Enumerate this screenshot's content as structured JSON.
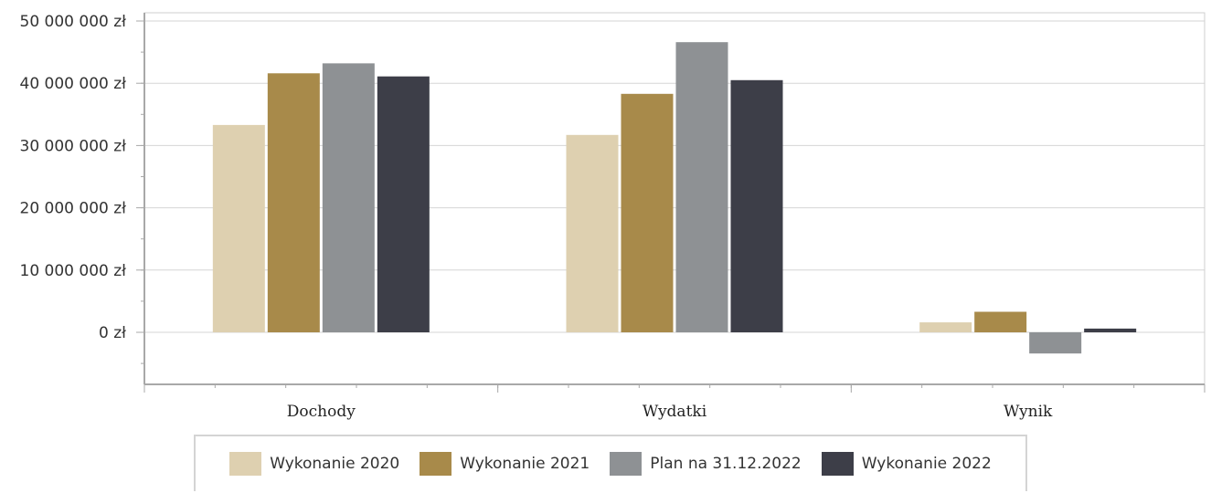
{
  "chart_data": {
    "type": "bar",
    "title": "",
    "xlabel": "",
    "ylabel": "",
    "categories": [
      "Dochody",
      "Wydatki",
      "Wynik"
    ],
    "series": [
      {
        "name": "Wykonanie 2020",
        "color": "#ded0b0",
        "values": [
          33300000,
          31700000,
          1600000
        ]
      },
      {
        "name": "Wykonanie 2021",
        "color": "#a88a4a",
        "values": [
          41600000,
          38300000,
          3300000
        ]
      },
      {
        "name": "Plan na 31.12.2022",
        "color": "#8e9194",
        "values": [
          43200000,
          46600000,
          -3400000
        ]
      },
      {
        "name": "Wykonanie 2022",
        "color": "#3d3e48",
        "values": [
          41100000,
          40500000,
          600000
        ]
      }
    ],
    "ylim": [
      -8500000,
      51000000
    ],
    "yticks": [
      0,
      10000000,
      20000000,
      30000000,
      40000000,
      50000000
    ],
    "ytick_labels": [
      "0 zł",
      "10 000 000 zł",
      "20 000 000 zł",
      "30 000 000 zł",
      "40 000 000 zł",
      "50 000 000 zł"
    ],
    "grid": true,
    "legend_position": "bottom"
  }
}
